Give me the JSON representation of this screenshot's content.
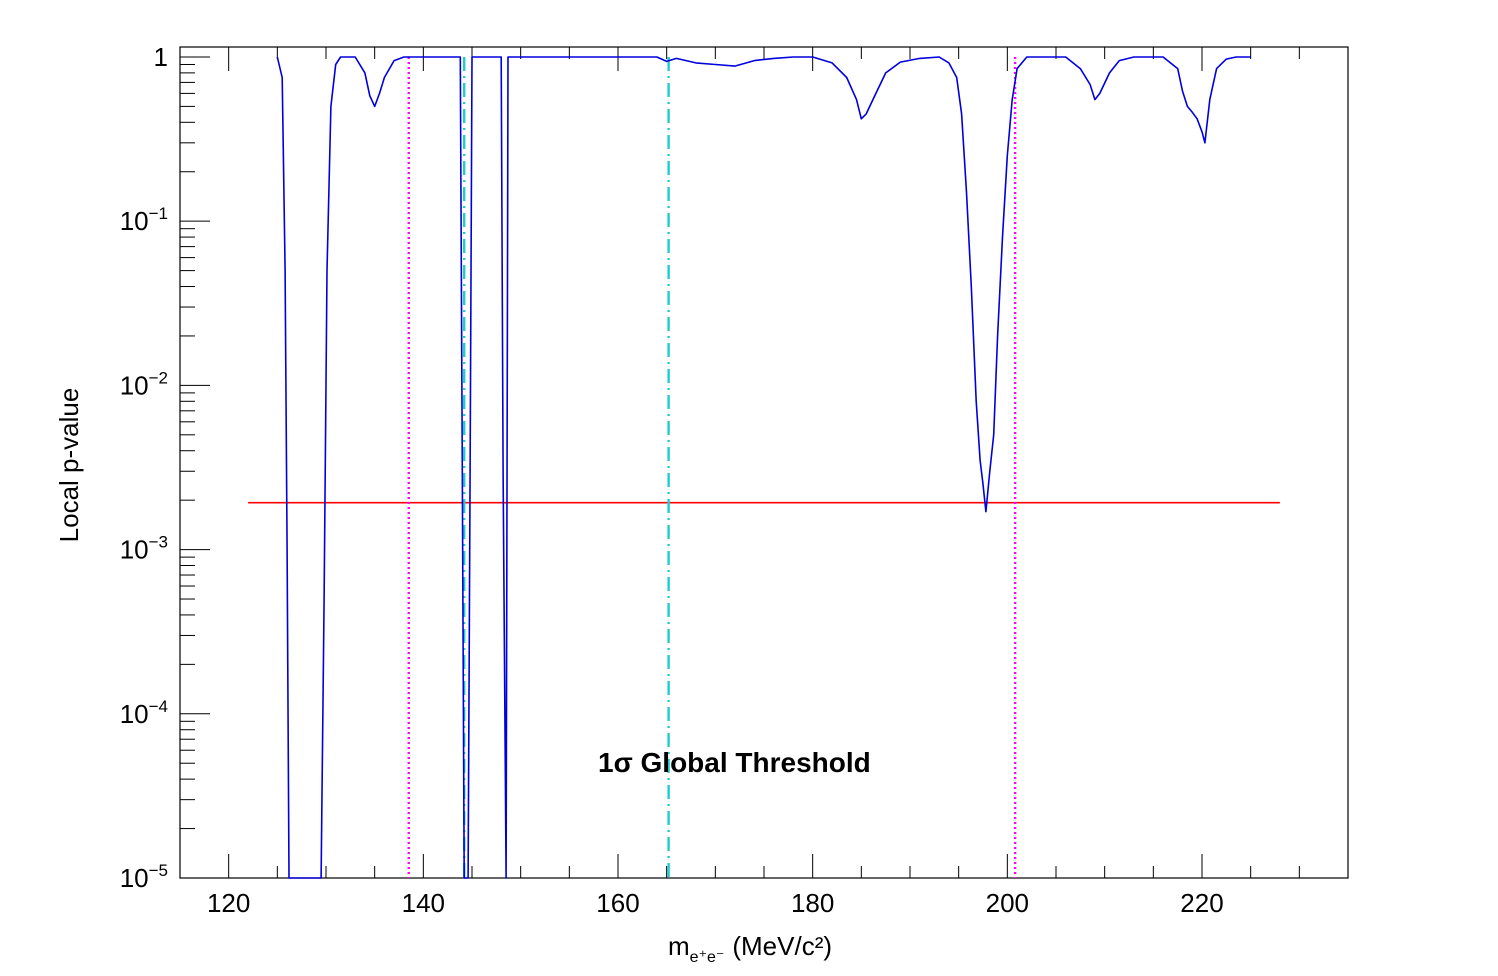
{
  "chart_data": {
    "type": "line",
    "xlabel": "m",
    "xlabel_subscript": "e⁺e⁻",
    "xlabel_units": "(MeV/c²)",
    "ylabel": "Local p-value",
    "xlim": [
      115,
      235
    ],
    "ylim": [
      1e-05,
      1.15
    ],
    "yscale": "log",
    "grid": false,
    "x_ticks": [
      120,
      140,
      160,
      180,
      200,
      220
    ],
    "x_tick_labels": [
      "120",
      "140",
      "160",
      "180",
      "200",
      "220"
    ],
    "y_tick_labels": [
      {
        "base": "1",
        "exp": ""
      },
      {
        "base": "10",
        "exp": "−1"
      },
      {
        "base": "10",
        "exp": "−2"
      },
      {
        "base": "10",
        "exp": "−3"
      },
      {
        "base": "10",
        "exp": "−4"
      },
      {
        "base": "10",
        "exp": "−5"
      }
    ],
    "annotation": "1σ Global Threshold",
    "series": [
      {
        "color": "#0000dd",
        "style": "solid",
        "x": [
          125.0,
          125.5,
          125.8,
          126.0,
          126.2,
          129.5,
          129.8,
          130.1,
          130.5,
          131.0,
          131.5,
          132.0,
          133.0,
          134.0,
          134.5,
          135.0,
          135.5,
          136.0,
          137.0,
          138.0,
          140.0,
          142.0,
          143.8,
          144.0,
          144.2,
          144.6,
          144.8,
          145.0,
          145.2,
          145.6,
          148.0,
          148.2,
          148.5,
          148.7,
          149.0,
          150.0,
          155.0,
          160.0,
          164.0,
          165.0,
          166.0,
          168.0,
          170.0,
          172.0,
          174.0,
          176.0,
          178.0,
          180.0,
          182.0,
          183.5,
          184.5,
          185.0,
          185.5,
          186.5,
          187.5,
          189.0,
          191.0,
          193.0,
          194.0,
          194.8,
          195.3,
          195.8,
          196.3,
          196.8,
          197.2,
          197.5,
          197.8,
          198.2,
          198.6,
          199.0,
          199.5,
          200.0,
          200.5,
          201.0,
          202.0,
          204.0,
          206.0,
          207.5,
          208.5,
          209.0,
          209.5,
          210.5,
          211.5,
          213.0,
          216.0,
          217.5,
          218.0,
          218.5,
          219.0,
          219.5,
          220.0,
          220.3,
          220.8,
          221.5,
          222.5,
          223.5,
          225.0
        ],
        "y": [
          1.0,
          0.75,
          0.05,
          0.001,
          1e-05,
          1e-05,
          0.0005,
          0.05,
          0.5,
          0.9,
          1.0,
          1.0,
          1.0,
          0.8,
          0.58,
          0.5,
          0.6,
          0.75,
          0.95,
          1.0,
          1.0,
          1.0,
          1.0,
          0.003,
          1e-05,
          1e-05,
          0.003,
          1.0,
          1.0,
          1.0,
          1.0,
          0.003,
          1e-05,
          1.0,
          1.0,
          1.0,
          1.0,
          1.0,
          1.0,
          0.94,
          0.98,
          0.92,
          0.9,
          0.88,
          0.95,
          0.98,
          1.0,
          1.0,
          0.92,
          0.75,
          0.55,
          0.42,
          0.45,
          0.6,
          0.8,
          0.93,
          0.98,
          1.0,
          0.92,
          0.75,
          0.45,
          0.15,
          0.04,
          0.008,
          0.0035,
          0.0025,
          0.0017,
          0.003,
          0.005,
          0.02,
          0.08,
          0.25,
          0.55,
          0.85,
          1.0,
          1.0,
          1.0,
          0.85,
          0.68,
          0.55,
          0.6,
          0.8,
          0.95,
          1.0,
          1.0,
          0.85,
          0.62,
          0.5,
          0.46,
          0.42,
          0.35,
          0.3,
          0.55,
          0.85,
          0.97,
          1.0,
          1.0
        ]
      }
    ],
    "reference_lines": [
      {
        "orientation": "horizontal",
        "value": 0.00193,
        "from": 122,
        "to": 228,
        "color": "#ff0000",
        "style": "solid"
      },
      {
        "orientation": "vertical",
        "value": 138.5,
        "color": "#ff00ff",
        "style": "dotted"
      },
      {
        "orientation": "vertical",
        "value": 200.8,
        "color": "#ff00ff",
        "style": "dotted"
      },
      {
        "orientation": "vertical",
        "value": 144.2,
        "color": "#22cccc",
        "style": "dashdot"
      },
      {
        "orientation": "vertical",
        "value": 165.2,
        "color": "#22cccc",
        "style": "dashdot"
      }
    ]
  }
}
